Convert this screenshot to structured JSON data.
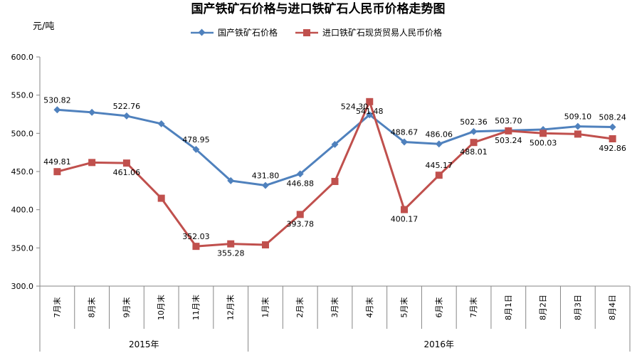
{
  "chart_data": {
    "type": "line",
    "title": "国产铁矿石价格与进口铁矿石人民币价格走势图",
    "ylabel": "元/吨",
    "ylim": [
      300,
      600
    ],
    "yticks": [
      "300.0",
      "350.0",
      "400.0",
      "450.0",
      "500.0",
      "550.0",
      "600.0"
    ],
    "categories": [
      "7月末",
      "8月末",
      "9月末",
      "10月末",
      "11月末",
      "12月末",
      "1月末",
      "2月末",
      "3月末",
      "4月末",
      "5月末",
      "6月末",
      "7月末",
      "8月1日",
      "8月2日",
      "8月3日",
      "8月4日"
    ],
    "groups": [
      {
        "label": "2015年",
        "span": 6
      },
      {
        "label": "2016年",
        "span": 11
      }
    ],
    "grid": false,
    "legend": "top",
    "series": [
      {
        "name": "国产铁矿石价格",
        "color": "#4F81BD",
        "marker": "diamond",
        "values": [
          530.82,
          527.5,
          522.76,
          512.5,
          478.95,
          438.0,
          431.8,
          446.88,
          485.5,
          524.3,
          488.67,
          486.06,
          502.36,
          503.7,
          505.0,
          509.1,
          508.24
        ],
        "labels": [
          "530.82",
          "",
          "522.76",
          "",
          "478.95",
          "",
          "431.80",
          "446.88",
          "",
          "524.30",
          "488.67",
          "486.06",
          "502.36",
          "503.70",
          "",
          "509.10",
          "508.24"
        ]
      },
      {
        "name": "进口铁矿石现货贸易人民币价格",
        "color": "#C0504D",
        "marker": "square",
        "values": [
          449.81,
          461.8,
          461.06,
          415.0,
          352.03,
          355.28,
          354.0,
          393.78,
          437.0,
          541.48,
          400.17,
          445.17,
          488.01,
          503.24,
          500.03,
          499.0,
          492.86
        ],
        "labels": [
          "449.81",
          "",
          "461.06",
          "",
          "352.03",
          "355.28",
          "",
          "393.78",
          "",
          "541.48",
          "400.17",
          "445.17",
          "488.01",
          "503.24",
          "500.03",
          "",
          "492.86"
        ]
      }
    ]
  }
}
